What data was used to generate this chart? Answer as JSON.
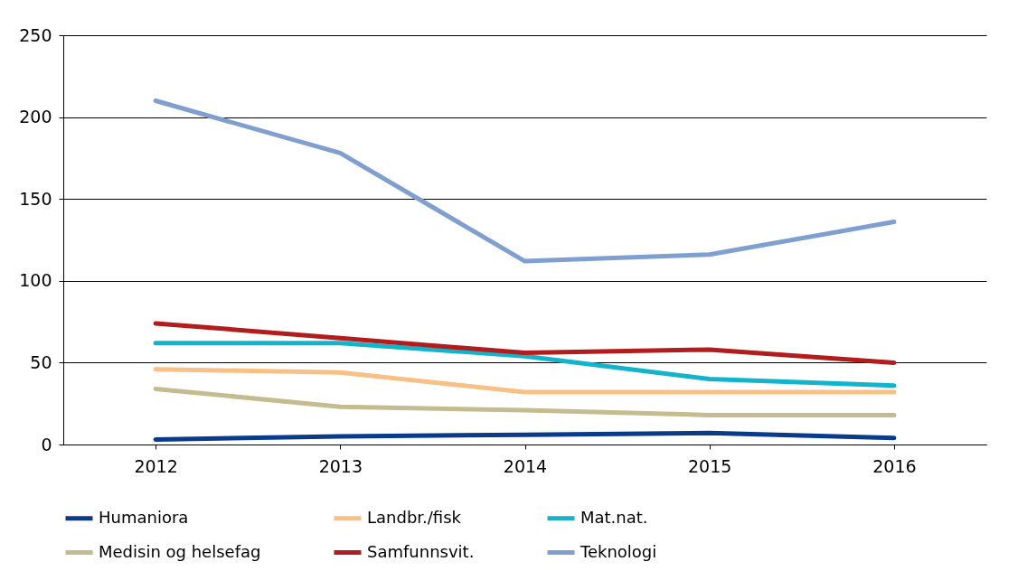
{
  "chart_data": {
    "type": "line",
    "categories": [
      "2012",
      "2013",
      "2014",
      "2015",
      "2016"
    ],
    "series": [
      {
        "name": "Humaniora",
        "color": "#0a3a8a",
        "values": [
          3,
          5,
          6,
          7,
          4
        ]
      },
      {
        "name": "Landbr./fisk",
        "color": "#f8c084",
        "values": [
          46,
          44,
          32,
          32,
          32
        ]
      },
      {
        "name": "Mat.nat.",
        "color": "#12b4cc",
        "values": [
          62,
          62,
          54,
          40,
          36
        ]
      },
      {
        "name": "Medisin og helsefag",
        "color": "#c4bc8e",
        "values": [
          34,
          23,
          21,
          18,
          18
        ]
      },
      {
        "name": "Samfunnsvit.",
        "color": "#b21c1c",
        "values": [
          74,
          65,
          56,
          58,
          50
        ]
      },
      {
        "name": "Teknologi",
        "color": "#7f9fd0",
        "values": [
          210,
          178,
          112,
          116,
          136
        ]
      }
    ],
    "ylim": [
      0,
      250
    ],
    "yticks": [
      0,
      50,
      100,
      150,
      200,
      250
    ],
    "grid": "y",
    "legend": "bottom",
    "marker": "none",
    "line_style": "solid"
  }
}
